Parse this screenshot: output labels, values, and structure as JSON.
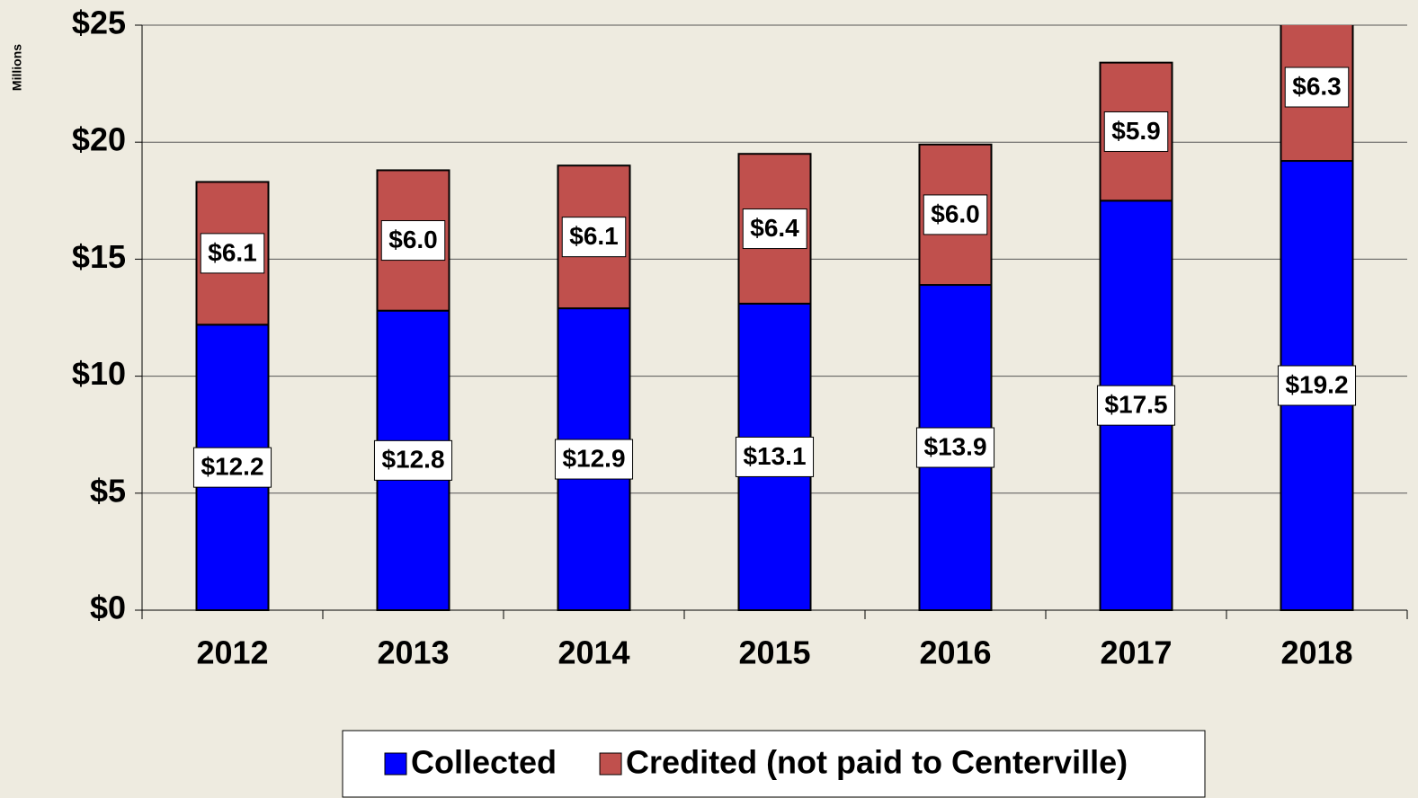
{
  "chart_data": {
    "type": "stacked_bar",
    "y_label": "Millions",
    "categories": [
      "2012",
      "2013",
      "2014",
      "2015",
      "2016",
      "2017",
      "2018"
    ],
    "series": [
      {
        "name": "Collected",
        "color": "#0000ff",
        "values": [
          12.2,
          12.8,
          12.9,
          13.1,
          13.9,
          17.5,
          19.2
        ],
        "value_labels": [
          "$12.2",
          "$12.8",
          "$12.9",
          "$13.1",
          "$13.9",
          "$17.5",
          "$19.2"
        ]
      },
      {
        "name": "Credited (not paid to Centerville)",
        "color": "#c0504d",
        "values": [
          6.1,
          6.0,
          6.1,
          6.4,
          6.0,
          5.9,
          6.3
        ],
        "value_labels": [
          "$6.1",
          "$6.0",
          "$6.1",
          "$6.4",
          "$6.0",
          "$5.9",
          "$6.3"
        ]
      }
    ],
    "ylim": [
      0,
      25
    ],
    "yticks": [
      {
        "value": 0,
        "label": "$0"
      },
      {
        "value": 5,
        "label": "$5"
      },
      {
        "value": 10,
        "label": "$10"
      },
      {
        "value": 15,
        "label": "$15"
      },
      {
        "value": 20,
        "label": "$20"
      },
      {
        "value": 25,
        "label": "$25"
      }
    ],
    "grid": true,
    "legend": "bottom"
  }
}
